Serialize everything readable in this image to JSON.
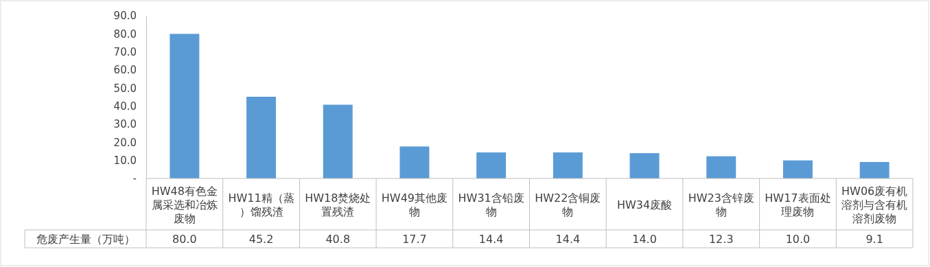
{
  "chart_data": {
    "type": "bar",
    "categories": [
      "HW48有色金属采选和冶炼废物",
      "HW11精（蒸）馏残渣",
      "HW18焚烧处置残渣",
      "HW49其他废物",
      "HW31含铅废物",
      "HW22含铜废物",
      "HW34废酸",
      "HW23含锌废物",
      "HW17表面处理废物",
      "HW06废有机溶剂与含有机溶剂废物"
    ],
    "series": [
      {
        "name": "危废产生量（万吨）",
        "color": "#5b9bd5",
        "values": [
          80.0,
          45.2,
          40.8,
          17.7,
          14.4,
          14.4,
          14.0,
          12.3,
          10.0,
          9.1
        ],
        "value_labels": [
          "80.0",
          "45.2",
          "40.8",
          "17.7",
          "14.4",
          "14.4",
          "14.0",
          "12.3",
          "10.0",
          "9.1"
        ]
      }
    ],
    "ylim": [
      0,
      90
    ],
    "yticks": [
      {
        "value": 0,
        "label": "-"
      },
      {
        "value": 10,
        "label": "10.0"
      },
      {
        "value": 20,
        "label": "20.0"
      },
      {
        "value": 30,
        "label": "30.0"
      },
      {
        "value": 40,
        "label": "40.0"
      },
      {
        "value": 50,
        "label": "50.0"
      },
      {
        "value": 60,
        "label": "60.0"
      },
      {
        "value": 70,
        "label": "70.0"
      },
      {
        "value": 80,
        "label": "80.0"
      },
      {
        "value": 90,
        "label": "90.0"
      }
    ]
  }
}
